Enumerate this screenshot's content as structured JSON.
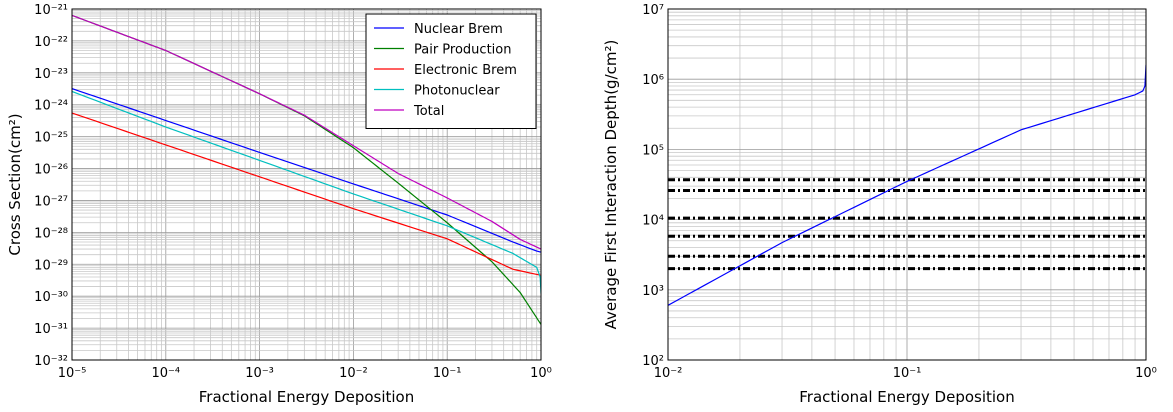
{
  "chart_data": [
    {
      "type": "line",
      "xlabel": "Fractional Energy Deposition",
      "ylabel": "Cross Section(cm²)",
      "xscale": "log",
      "yscale": "log",
      "xlim": [
        1e-05,
        1
      ],
      "ylim": [
        1e-32,
        1e-21
      ],
      "grid": true,
      "legend_position": "top-right",
      "x_tick_labels": [
        "10⁻⁵",
        "10⁻⁴",
        "10⁻³",
        "10⁻²",
        "10⁻¹",
        "10⁰"
      ],
      "y_tick_labels": [
        "10⁻³²",
        "10⁻³¹",
        "10⁻³⁰",
        "10⁻²⁹",
        "10⁻²⁸",
        "10⁻²⁷",
        "10⁻²⁶",
        "10⁻²⁵",
        "10⁻²⁴",
        "10⁻²³",
        "10⁻²²",
        "10⁻²¹"
      ],
      "series": [
        {
          "name": "Nuclear Brem",
          "color": "#0000ff",
          "x": [
            1e-05,
            0.0001,
            0.001,
            0.01,
            0.1,
            0.5,
            0.9,
            1.0
          ],
          "y": [
            3.2e-24,
            3.2e-25,
            3.2e-26,
            3.3e-27,
            3.5e-28,
            5e-29,
            2.6e-29,
            2.4e-29
          ]
        },
        {
          "name": "Pair Production",
          "color": "#008000",
          "x": [
            1e-05,
            0.0001,
            0.001,
            0.003,
            0.01,
            0.03,
            0.1,
            0.3,
            0.6,
            1.0
          ],
          "y": [
            6.3e-22,
            5e-23,
            2.2e-24,
            4.5e-25,
            4.5e-26,
            3.5e-27,
            2e-28,
            1.2e-29,
            1.3e-30,
            1.3e-31
          ]
        },
        {
          "name": "Electronic Brem",
          "color": "#ff0000",
          "x": [
            1e-05,
            0.0001,
            0.001,
            0.01,
            0.1,
            0.5,
            1.0
          ],
          "y": [
            5.5e-25,
            5.5e-26,
            5.5e-27,
            5.5e-28,
            6.3e-29,
            7e-30,
            4.5e-30
          ]
        },
        {
          "name": "Photonuclear",
          "color": "#00bfbf",
          "x": [
            1e-05,
            0.0001,
            0.001,
            0.01,
            0.1,
            0.5,
            0.9,
            0.98,
            1.0
          ],
          "y": [
            2.6e-24,
            2e-25,
            1.8e-26,
            1.6e-27,
            1.6e-28,
            2.2e-29,
            8e-30,
            4e-30,
            1.2e-30
          ]
        },
        {
          "name": "Total",
          "color": "#bf00bf",
          "x": [
            1e-05,
            0.0001,
            0.001,
            0.003,
            0.01,
            0.03,
            0.1,
            0.3,
            0.6,
            1.0
          ],
          "y": [
            6.3e-22,
            5e-23,
            2.2e-24,
            4.7e-25,
            5.2e-26,
            7e-27,
            1.2e-27,
            2.2e-28,
            6e-29,
            3e-29
          ]
        }
      ]
    },
    {
      "type": "line",
      "xlabel": "Fractional Energy Deposition",
      "ylabel": "Average First Interaction Depth(g/cm²)",
      "xscale": "log",
      "yscale": "log",
      "xlim": [
        0.01,
        1
      ],
      "ylim": [
        100,
        10000000
      ],
      "grid": true,
      "x_tick_labels": [
        "10⁻²",
        "10⁻¹",
        "10⁰"
      ],
      "y_tick_labels": [
        "10²",
        "10³",
        "10⁴",
        "10⁵",
        "10⁶",
        "10⁷"
      ],
      "series": [
        {
          "color": "#0000ff",
          "x": [
            0.01,
            0.03,
            0.1,
            0.3,
            0.9,
            0.97,
            0.99,
            1.0
          ],
          "y": [
            600,
            4700,
            35000,
            190000,
            600000,
            680000,
            800000,
            1600000
          ]
        }
      ],
      "reference_lines": {
        "style": "dash-dot",
        "color": "#000000",
        "y": [
          2000,
          3000,
          5800,
          10500,
          26000,
          37000
        ]
      }
    }
  ]
}
